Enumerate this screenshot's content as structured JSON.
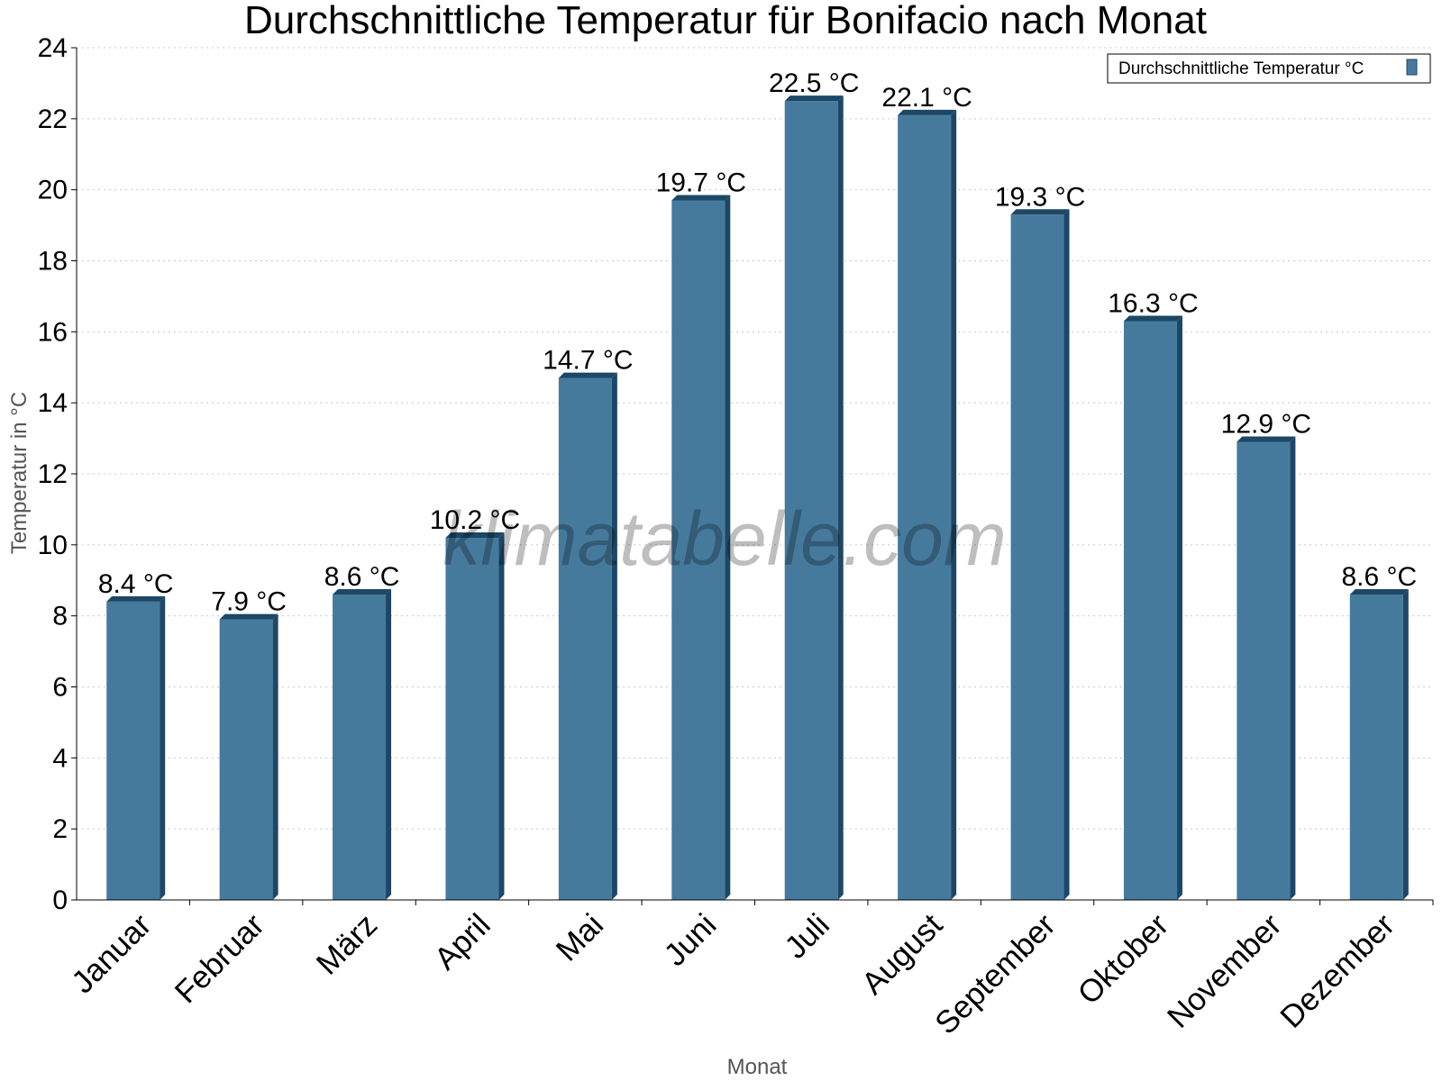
{
  "chart_data": {
    "type": "bar",
    "title": "Durchschnittliche Temperatur für Bonifacio nach Monat",
    "xlabel": "Monat",
    "ylabel": "Temperatur in °C",
    "categories": [
      "Januar",
      "Februar",
      "März",
      "April",
      "Mai",
      "Juni",
      "Juli",
      "August",
      "September",
      "Oktober",
      "November",
      "Dezember"
    ],
    "series": [
      {
        "name": "Durchschnittliche Temperatur °C",
        "values": [
          8.4,
          7.9,
          8.6,
          10.2,
          14.7,
          19.7,
          22.5,
          22.1,
          19.3,
          16.3,
          12.9,
          8.6
        ],
        "labels": [
          "8.4 °C",
          "7.9 °C",
          "8.6 °C",
          "10.2 °C",
          "14.7 °C",
          "19.7 °C",
          "22.5 °C",
          "22.1 °C",
          "19.3 °C",
          "16.3 °C",
          "12.9 °C",
          "8.6 °C"
        ],
        "color": "#467a9d",
        "edge_color": "#1c4766"
      }
    ],
    "ylim": [
      0,
      24
    ],
    "yticks": [
      0,
      2,
      4,
      6,
      8,
      10,
      12,
      14,
      16,
      18,
      20,
      22,
      24
    ],
    "grid": true,
    "legend_position": "top-right"
  },
  "watermark": "klimatabelle.com"
}
